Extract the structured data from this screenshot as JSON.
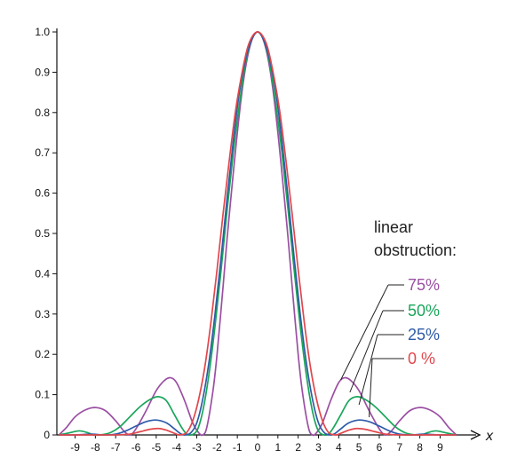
{
  "chart_data": {
    "type": "line",
    "title": "",
    "xlabel": "x",
    "ylabel": "",
    "xlim": [
      -9.9,
      9.9
    ],
    "ylim": [
      0,
      1.0
    ],
    "xticks": [
      -9,
      -8,
      -7,
      -6,
      -5,
      -4,
      -3,
      -2,
      -1,
      0,
      1,
      2,
      3,
      4,
      5,
      6,
      7,
      8,
      9
    ],
    "xtick_labels": [
      "-9",
      "-8",
      "-7",
      "-6",
      "-5",
      "-4",
      "-3",
      "-2",
      "-1",
      "0",
      "1",
      "2",
      "3",
      "4",
      "5",
      "6",
      "7",
      "8",
      "9"
    ],
    "yticks": [
      0,
      0.1,
      0.2,
      0.3,
      0.4,
      0.5,
      0.6,
      0.7,
      0.8,
      0.9,
      1.0
    ],
    "ytick_labels": [
      "0",
      "0.1",
      "0.2",
      "0.3",
      "0.4",
      "0.5",
      "0.6",
      "0.7",
      "0.8",
      "0.9",
      "1.0"
    ],
    "grid": false,
    "legend": {
      "title_lines": [
        "linear",
        "obstruction:"
      ],
      "placement": "right"
    },
    "series": [
      {
        "name": "75%",
        "label": "75%",
        "color": "#9b4fa3",
        "points": [
          [
            -9.8,
            0.0
          ],
          [
            -9.4,
            0.02
          ],
          [
            -9.0,
            0.045
          ],
          [
            -8.5,
            0.062
          ],
          [
            -8.0,
            0.068
          ],
          [
            -7.5,
            0.06
          ],
          [
            -7.0,
            0.035
          ],
          [
            -6.6,
            0.01
          ],
          [
            -6.3,
            0.0
          ],
          [
            -6.0,
            0.015
          ],
          [
            -5.5,
            0.06
          ],
          [
            -5.0,
            0.11
          ],
          [
            -4.6,
            0.135
          ],
          [
            -4.3,
            0.142
          ],
          [
            -4.0,
            0.13
          ],
          [
            -3.6,
            0.085
          ],
          [
            -3.2,
            0.03
          ],
          [
            -2.9,
            0.005
          ],
          [
            -2.7,
            0.0
          ],
          [
            -2.5,
            0.02
          ],
          [
            -2.2,
            0.11
          ],
          [
            -2.0,
            0.2
          ],
          [
            -1.7,
            0.37
          ],
          [
            -1.5,
            0.49
          ],
          [
            -1.2,
            0.65
          ],
          [
            -1.0,
            0.75
          ],
          [
            -0.8,
            0.84
          ],
          [
            -0.6,
            0.91
          ],
          [
            -0.4,
            0.96
          ],
          [
            -0.2,
            0.99
          ],
          [
            0.0,
            1.0
          ],
          [
            0.2,
            0.99
          ],
          [
            0.4,
            0.96
          ],
          [
            0.6,
            0.91
          ],
          [
            0.8,
            0.84
          ],
          [
            1.0,
            0.75
          ],
          [
            1.2,
            0.65
          ],
          [
            1.5,
            0.49
          ],
          [
            1.7,
            0.37
          ],
          [
            2.0,
            0.2
          ],
          [
            2.2,
            0.11
          ],
          [
            2.5,
            0.02
          ],
          [
            2.7,
            0.0
          ],
          [
            2.9,
            0.005
          ],
          [
            3.2,
            0.03
          ],
          [
            3.6,
            0.085
          ],
          [
            4.0,
            0.13
          ],
          [
            4.3,
            0.142
          ],
          [
            4.6,
            0.135
          ],
          [
            5.0,
            0.11
          ],
          [
            5.5,
            0.06
          ],
          [
            6.0,
            0.015
          ],
          [
            6.3,
            0.0
          ],
          [
            6.6,
            0.01
          ],
          [
            7.0,
            0.035
          ],
          [
            7.5,
            0.06
          ],
          [
            8.0,
            0.068
          ],
          [
            8.5,
            0.062
          ],
          [
            9.0,
            0.045
          ],
          [
            9.4,
            0.02
          ],
          [
            9.8,
            0.0
          ]
        ]
      },
      {
        "name": "50%",
        "label": "50%",
        "color": "#1aa55a",
        "points": [
          [
            -9.8,
            0.0
          ],
          [
            -9.3,
            0.005
          ],
          [
            -8.8,
            0.01
          ],
          [
            -8.4,
            0.006
          ],
          [
            -8.1,
            0.0
          ],
          [
            -7.8,
            0.0
          ],
          [
            -7.3,
            0.005
          ],
          [
            -6.8,
            0.02
          ],
          [
            -6.3,
            0.045
          ],
          [
            -5.8,
            0.07
          ],
          [
            -5.3,
            0.088
          ],
          [
            -4.9,
            0.095
          ],
          [
            -4.5,
            0.085
          ],
          [
            -4.1,
            0.05
          ],
          [
            -3.7,
            0.015
          ],
          [
            -3.4,
            0.0
          ],
          [
            -3.0,
            0.01
          ],
          [
            -2.7,
            0.06
          ],
          [
            -2.4,
            0.15
          ],
          [
            -2.1,
            0.27
          ],
          [
            -1.8,
            0.41
          ],
          [
            -1.5,
            0.56
          ],
          [
            -1.2,
            0.7
          ],
          [
            -0.9,
            0.82
          ],
          [
            -0.6,
            0.92
          ],
          [
            -0.3,
            0.98
          ],
          [
            0.0,
            1.0
          ],
          [
            0.3,
            0.98
          ],
          [
            0.6,
            0.92
          ],
          [
            0.9,
            0.82
          ],
          [
            1.2,
            0.7
          ],
          [
            1.5,
            0.56
          ],
          [
            1.8,
            0.41
          ],
          [
            2.1,
            0.27
          ],
          [
            2.4,
            0.15
          ],
          [
            2.7,
            0.06
          ],
          [
            3.0,
            0.01
          ],
          [
            3.4,
            0.0
          ],
          [
            3.7,
            0.015
          ],
          [
            4.1,
            0.05
          ],
          [
            4.5,
            0.085
          ],
          [
            4.9,
            0.095
          ],
          [
            5.3,
            0.088
          ],
          [
            5.8,
            0.07
          ],
          [
            6.3,
            0.045
          ],
          [
            6.8,
            0.02
          ],
          [
            7.3,
            0.005
          ],
          [
            7.8,
            0.0
          ],
          [
            8.1,
            0.0
          ],
          [
            8.4,
            0.006
          ],
          [
            8.8,
            0.01
          ],
          [
            9.3,
            0.005
          ],
          [
            9.8,
            0.0
          ]
        ]
      },
      {
        "name": "25%",
        "label": "25%",
        "color": "#2f5ba8",
        "points": [
          [
            -9.8,
            0.0
          ],
          [
            -9.0,
            0.0
          ],
          [
            -8.2,
            0.002
          ],
          [
            -7.6,
            0.0
          ],
          [
            -7.0,
            0.002
          ],
          [
            -6.5,
            0.01
          ],
          [
            -6.0,
            0.022
          ],
          [
            -5.5,
            0.033
          ],
          [
            -5.0,
            0.037
          ],
          [
            -4.5,
            0.03
          ],
          [
            -4.1,
            0.015
          ],
          [
            -3.8,
            0.003
          ],
          [
            -3.6,
            0.0
          ],
          [
            -3.3,
            0.005
          ],
          [
            -3.0,
            0.03
          ],
          [
            -2.7,
            0.09
          ],
          [
            -2.4,
            0.18
          ],
          [
            -2.1,
            0.3
          ],
          [
            -1.8,
            0.44
          ],
          [
            -1.5,
            0.59
          ],
          [
            -1.2,
            0.73
          ],
          [
            -0.9,
            0.85
          ],
          [
            -0.6,
            0.93
          ],
          [
            -0.3,
            0.98
          ],
          [
            0.0,
            1.0
          ],
          [
            0.3,
            0.98
          ],
          [
            0.6,
            0.93
          ],
          [
            0.9,
            0.85
          ],
          [
            1.2,
            0.73
          ],
          [
            1.5,
            0.59
          ],
          [
            1.8,
            0.44
          ],
          [
            2.1,
            0.3
          ],
          [
            2.4,
            0.18
          ],
          [
            2.7,
            0.09
          ],
          [
            3.0,
            0.03
          ],
          [
            3.3,
            0.005
          ],
          [
            3.6,
            0.0
          ],
          [
            3.8,
            0.003
          ],
          [
            4.1,
            0.015
          ],
          [
            4.5,
            0.03
          ],
          [
            5.0,
            0.037
          ],
          [
            5.5,
            0.033
          ],
          [
            6.0,
            0.022
          ],
          [
            6.5,
            0.01
          ],
          [
            7.0,
            0.002
          ],
          [
            7.6,
            0.0
          ],
          [
            8.2,
            0.002
          ],
          [
            9.0,
            0.0
          ],
          [
            9.8,
            0.0
          ]
        ]
      },
      {
        "name": "0 %",
        "label": "0  %",
        "color": "#e0474c",
        "points": [
          [
            -9.8,
            0.0
          ],
          [
            -9.0,
            0.0
          ],
          [
            -8.0,
            0.0
          ],
          [
            -7.0,
            0.0
          ],
          [
            -6.3,
            0.002
          ],
          [
            -5.8,
            0.008
          ],
          [
            -5.3,
            0.014
          ],
          [
            -4.9,
            0.016
          ],
          [
            -4.5,
            0.012
          ],
          [
            -4.1,
            0.004
          ],
          [
            -3.85,
            0.0
          ],
          [
            -3.5,
            0.006
          ],
          [
            -3.2,
            0.035
          ],
          [
            -2.9,
            0.09
          ],
          [
            -2.6,
            0.17
          ],
          [
            -2.3,
            0.28
          ],
          [
            -2.0,
            0.41
          ],
          [
            -1.7,
            0.55
          ],
          [
            -1.4,
            0.68
          ],
          [
            -1.1,
            0.8
          ],
          [
            -0.8,
            0.89
          ],
          [
            -0.5,
            0.96
          ],
          [
            -0.25,
            0.99
          ],
          [
            0.0,
            1.0
          ],
          [
            0.25,
            0.99
          ],
          [
            0.5,
            0.96
          ],
          [
            0.8,
            0.89
          ],
          [
            1.1,
            0.8
          ],
          [
            1.4,
            0.68
          ],
          [
            1.7,
            0.55
          ],
          [
            2.0,
            0.41
          ],
          [
            2.3,
            0.28
          ],
          [
            2.6,
            0.17
          ],
          [
            2.9,
            0.09
          ],
          [
            3.2,
            0.035
          ],
          [
            3.5,
            0.006
          ],
          [
            3.85,
            0.0
          ],
          [
            4.1,
            0.004
          ],
          [
            4.5,
            0.012
          ],
          [
            4.9,
            0.016
          ],
          [
            5.3,
            0.014
          ],
          [
            5.8,
            0.008
          ],
          [
            6.3,
            0.002
          ],
          [
            7.0,
            0.0
          ],
          [
            8.0,
            0.0
          ],
          [
            9.0,
            0.0
          ],
          [
            9.8,
            0.0
          ]
        ]
      }
    ],
    "legend_anchor_x": [
      4.1,
      4.55,
      5.0,
      5.5
    ]
  }
}
